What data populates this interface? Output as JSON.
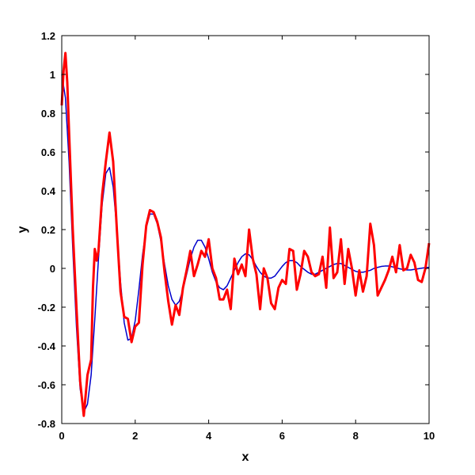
{
  "chart_data": {
    "type": "line",
    "title": "",
    "xlabel": "x",
    "ylabel": "y",
    "xlim": [
      0,
      10
    ],
    "ylim": [
      -0.8,
      1.2
    ],
    "x_ticks": [
      0,
      2,
      4,
      6,
      8,
      10
    ],
    "x_tick_labels": [
      "0",
      "2",
      "4",
      "6",
      "8",
      "10"
    ],
    "y_ticks": [
      -0.8,
      -0.6,
      -0.4,
      -0.2,
      0,
      0.2,
      0.4,
      0.6,
      0.8,
      1,
      1.2
    ],
    "y_tick_labels": [
      "-0.8",
      "-0.6",
      "-0.4",
      "-0.2",
      "0",
      "0.2",
      "0.4",
      "0.6",
      "0.8",
      "1",
      "1.2"
    ],
    "grid": false,
    "legend": "none",
    "series": [
      {
        "color": "#0000cc",
        "line_width": 1.5,
        "points": [
          [
            0.0,
            1.0
          ],
          [
            0.1,
            0.88
          ],
          [
            0.2,
            0.55
          ],
          [
            0.3,
            0.1
          ],
          [
            0.4,
            -0.3
          ],
          [
            0.5,
            -0.62
          ],
          [
            0.6,
            -0.74
          ],
          [
            0.7,
            -0.7
          ],
          [
            0.8,
            -0.55
          ],
          [
            0.9,
            -0.26
          ],
          [
            1.0,
            0.05
          ],
          [
            1.1,
            0.33
          ],
          [
            1.2,
            0.49
          ],
          [
            1.3,
            0.52
          ],
          [
            1.4,
            0.42
          ],
          [
            1.5,
            0.2
          ],
          [
            1.6,
            -0.07
          ],
          [
            1.7,
            -0.28
          ],
          [
            1.8,
            -0.37
          ],
          [
            1.9,
            -0.36
          ],
          [
            2.0,
            -0.27
          ],
          [
            2.1,
            -0.11
          ],
          [
            2.2,
            0.07
          ],
          [
            2.3,
            0.21
          ],
          [
            2.4,
            0.28
          ],
          [
            2.5,
            0.28
          ],
          [
            2.6,
            0.23
          ],
          [
            2.7,
            0.14
          ],
          [
            2.8,
            0.02
          ],
          [
            2.9,
            -0.09
          ],
          [
            3.0,
            -0.16
          ],
          [
            3.1,
            -0.19
          ],
          [
            3.2,
            -0.17
          ],
          [
            3.3,
            -0.11
          ],
          [
            3.4,
            -0.03
          ],
          [
            3.5,
            0.05
          ],
          [
            3.6,
            0.11
          ],
          [
            3.7,
            0.145
          ],
          [
            3.8,
            0.145
          ],
          [
            3.9,
            0.11
          ],
          [
            4.0,
            0.05
          ],
          [
            4.1,
            -0.02
          ],
          [
            4.2,
            -0.07
          ],
          [
            4.3,
            -0.1
          ],
          [
            4.4,
            -0.11
          ],
          [
            4.5,
            -0.09
          ],
          [
            4.6,
            -0.05
          ],
          [
            4.7,
            -0.01
          ],
          [
            4.8,
            0.03
          ],
          [
            4.9,
            0.06
          ],
          [
            5.0,
            0.075
          ],
          [
            5.1,
            0.07
          ],
          [
            5.2,
            0.045
          ],
          [
            5.3,
            0.01
          ],
          [
            5.4,
            -0.02
          ],
          [
            5.5,
            -0.04
          ],
          [
            5.6,
            -0.05
          ],
          [
            5.7,
            -0.05
          ],
          [
            5.8,
            -0.04
          ],
          [
            5.9,
            -0.015
          ],
          [
            6.0,
            0.01
          ],
          [
            6.1,
            0.03
          ],
          [
            6.2,
            0.04
          ],
          [
            6.3,
            0.04
          ],
          [
            6.4,
            0.03
          ],
          [
            6.5,
            0.01
          ],
          [
            6.6,
            -0.005
          ],
          [
            6.7,
            -0.02
          ],
          [
            6.8,
            -0.03
          ],
          [
            6.9,
            -0.03
          ],
          [
            7.0,
            -0.02
          ],
          [
            7.1,
            -0.01
          ],
          [
            7.2,
            0.0
          ],
          [
            7.3,
            0.01
          ],
          [
            7.4,
            0.02
          ],
          [
            7.5,
            0.025
          ],
          [
            7.6,
            0.025
          ],
          [
            7.7,
            0.015
          ],
          [
            7.8,
            0.005
          ],
          [
            7.9,
            -0.005
          ],
          [
            8.0,
            -0.015
          ],
          [
            8.1,
            -0.02
          ],
          [
            8.2,
            -0.02
          ],
          [
            8.3,
            -0.015
          ],
          [
            8.4,
            -0.01
          ],
          [
            8.5,
            0.0
          ],
          [
            8.6,
            0.005
          ],
          [
            8.7,
            0.01
          ],
          [
            8.8,
            0.012
          ],
          [
            8.9,
            0.012
          ],
          [
            9.0,
            0.008
          ],
          [
            9.1,
            0.003
          ],
          [
            9.2,
            -0.002
          ],
          [
            9.3,
            -0.006
          ],
          [
            9.4,
            -0.008
          ],
          [
            9.5,
            -0.008
          ],
          [
            9.6,
            -0.005
          ],
          [
            9.7,
            -0.002
          ],
          [
            9.8,
            0.001
          ],
          [
            9.9,
            0.004
          ],
          [
            10.0,
            0.005
          ]
        ]
      },
      {
        "color": "#ff0000",
        "line_width": 3,
        "points": [
          [
            0.0,
            0.84
          ],
          [
            0.05,
            1.02
          ],
          [
            0.1,
            1.11
          ],
          [
            0.15,
            0.96
          ],
          [
            0.2,
            0.7
          ],
          [
            0.3,
            0.2
          ],
          [
            0.4,
            -0.2
          ],
          [
            0.5,
            -0.58
          ],
          [
            0.6,
            -0.76
          ],
          [
            0.7,
            -0.55
          ],
          [
            0.8,
            -0.47
          ],
          [
            0.85,
            -0.1
          ],
          [
            0.9,
            0.1
          ],
          [
            0.95,
            0.04
          ],
          [
            1.0,
            0.09
          ],
          [
            1.1,
            0.38
          ],
          [
            1.2,
            0.55
          ],
          [
            1.3,
            0.7
          ],
          [
            1.4,
            0.55
          ],
          [
            1.5,
            0.2
          ],
          [
            1.6,
            -0.12
          ],
          [
            1.7,
            -0.25
          ],
          [
            1.8,
            -0.26
          ],
          [
            1.9,
            -0.38
          ],
          [
            2.0,
            -0.3
          ],
          [
            2.1,
            -0.28
          ],
          [
            2.2,
            0.02
          ],
          [
            2.3,
            0.22
          ],
          [
            2.4,
            0.3
          ],
          [
            2.5,
            0.29
          ],
          [
            2.6,
            0.24
          ],
          [
            2.7,
            0.16
          ],
          [
            2.8,
            -0.02
          ],
          [
            2.9,
            -0.17
          ],
          [
            3.0,
            -0.29
          ],
          [
            3.1,
            -0.19
          ],
          [
            3.2,
            -0.24
          ],
          [
            3.3,
            -0.1
          ],
          [
            3.4,
            -0.01
          ],
          [
            3.5,
            0.09
          ],
          [
            3.6,
            -0.04
          ],
          [
            3.7,
            0.02
          ],
          [
            3.8,
            0.09
          ],
          [
            3.9,
            0.06
          ],
          [
            4.0,
            0.15
          ],
          [
            4.1,
            0.0
          ],
          [
            4.2,
            -0.05
          ],
          [
            4.3,
            -0.16
          ],
          [
            4.4,
            -0.16
          ],
          [
            4.5,
            -0.11
          ],
          [
            4.6,
            -0.21
          ],
          [
            4.7,
            0.05
          ],
          [
            4.8,
            -0.03
          ],
          [
            4.9,
            0.02
          ],
          [
            5.0,
            -0.04
          ],
          [
            5.1,
            0.2
          ],
          [
            5.2,
            0.05
          ],
          [
            5.3,
            -0.03
          ],
          [
            5.4,
            -0.21
          ],
          [
            5.5,
            0.0
          ],
          [
            5.6,
            -0.05
          ],
          [
            5.7,
            -0.18
          ],
          [
            5.8,
            -0.21
          ],
          [
            5.9,
            -0.1
          ],
          [
            6.0,
            -0.06
          ],
          [
            6.1,
            -0.08
          ],
          [
            6.2,
            0.1
          ],
          [
            6.3,
            0.09
          ],
          [
            6.4,
            -0.11
          ],
          [
            6.5,
            -0.03
          ],
          [
            6.6,
            0.09
          ],
          [
            6.7,
            0.06
          ],
          [
            6.8,
            -0.02
          ],
          [
            6.9,
            -0.04
          ],
          [
            7.0,
            -0.03
          ],
          [
            7.1,
            0.06
          ],
          [
            7.2,
            -0.1
          ],
          [
            7.3,
            0.21
          ],
          [
            7.4,
            -0.05
          ],
          [
            7.5,
            -0.02
          ],
          [
            7.6,
            0.15
          ],
          [
            7.7,
            -0.08
          ],
          [
            7.8,
            0.1
          ],
          [
            7.9,
            0.0
          ],
          [
            8.0,
            -0.14
          ],
          [
            8.1,
            -0.01
          ],
          [
            8.2,
            -0.12
          ],
          [
            8.3,
            -0.04
          ],
          [
            8.4,
            0.23
          ],
          [
            8.5,
            0.12
          ],
          [
            8.6,
            -0.14
          ],
          [
            8.7,
            -0.1
          ],
          [
            8.8,
            -0.06
          ],
          [
            8.9,
            -0.01
          ],
          [
            9.0,
            0.06
          ],
          [
            9.1,
            -0.02
          ],
          [
            9.2,
            0.12
          ],
          [
            9.3,
            -0.01
          ],
          [
            9.4,
            0.0
          ],
          [
            9.5,
            0.07
          ],
          [
            9.6,
            0.03
          ],
          [
            9.7,
            -0.06
          ],
          [
            9.8,
            -0.07
          ],
          [
            9.9,
            0.0
          ],
          [
            10.0,
            0.13
          ]
        ]
      }
    ]
  }
}
